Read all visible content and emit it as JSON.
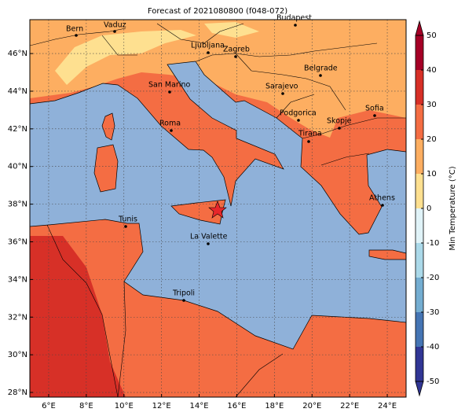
{
  "chart_data": {
    "type": "map",
    "title": "Forecast of 2021080800 (f048-072)",
    "xlim": [
      5,
      25
    ],
    "ylim": [
      27.75,
      47.8
    ],
    "xticks": [
      {
        "value": 6,
        "label": "6°E"
      },
      {
        "value": 8,
        "label": "8°E"
      },
      {
        "value": 10,
        "label": "10°E"
      },
      {
        "value": 12,
        "label": "12°E"
      },
      {
        "value": 14,
        "label": "14°E"
      },
      {
        "value": 16,
        "label": "16°E"
      },
      {
        "value": 18,
        "label": "18°E"
      },
      {
        "value": 20,
        "label": "20°E"
      },
      {
        "value": 22,
        "label": "22°E"
      },
      {
        "value": 24,
        "label": "24°E"
      }
    ],
    "yticks": [
      {
        "value": 28,
        "label": "28°N"
      },
      {
        "value": 30,
        "label": "30°N"
      },
      {
        "value": 32,
        "label": "32°N"
      },
      {
        "value": 34,
        "label": "34°N"
      },
      {
        "value": 36,
        "label": "36°N"
      },
      {
        "value": 38,
        "label": "38°N"
      },
      {
        "value": 40,
        "label": "40°N"
      },
      {
        "value": 42,
        "label": "42°N"
      },
      {
        "value": 44,
        "label": "44°N"
      },
      {
        "value": 46,
        "label": "46°N"
      }
    ],
    "grid": true,
    "cities": [
      "Bern",
      "Vaduz",
      "Budapest",
      "Ljubljana",
      "Zagreb",
      "Belgrade",
      "San Marino",
      "Sarajevo",
      "Sofia",
      "Roma",
      "Podgorica",
      "Skopje",
      "Tirana",
      "Athens",
      "Tunis",
      "La Valette",
      "Tripoli"
    ],
    "colorbar": {
      "label": "Min Temperature (°C)",
      "lim": [
        -50,
        50
      ],
      "ticks": [
        -50,
        -40,
        -30,
        -20,
        -10,
        0,
        10,
        20,
        30,
        40,
        50
      ],
      "colors": [
        "#313695",
        "#4575b4",
        "#74add1",
        "#abd9e9",
        "#e0f3f8",
        "#fee090",
        "#fdae61",
        "#f46d43",
        "#d73027",
        "#a50026"
      ]
    }
  }
}
